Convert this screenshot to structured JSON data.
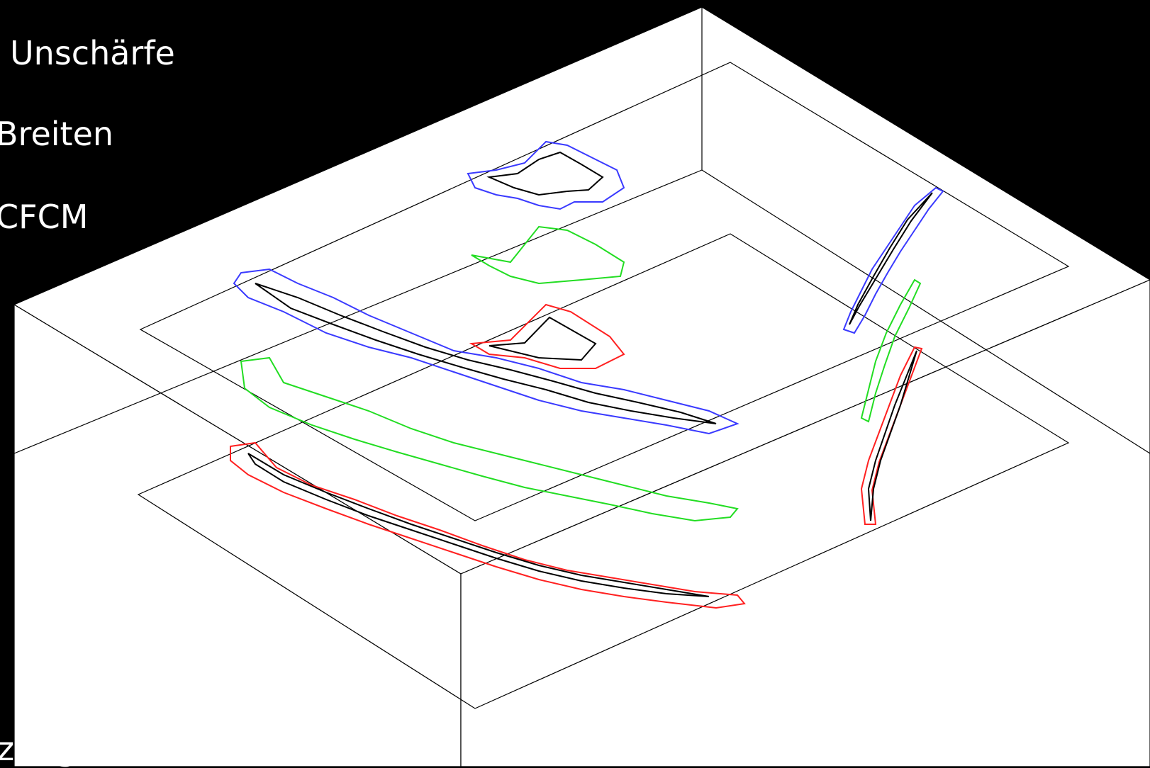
{
  "text": {
    "line1": "Unschärfe",
    "line2": "Breiten",
    "line3": "CFCM",
    "footer": "zung in MATLAB®"
  },
  "colors": {
    "background": "#000000",
    "box": "#000000",
    "box_face": "#ffffff",
    "blue": "#3a3aff",
    "green": "#22dd22",
    "red": "#ff2020",
    "core": "#000000"
  },
  "diagram": {
    "type": "3d-box-with-contour-slices",
    "layers": [
      "top",
      "middle",
      "bottom"
    ],
    "contour_colors": [
      "blue",
      "green",
      "red"
    ]
  }
}
